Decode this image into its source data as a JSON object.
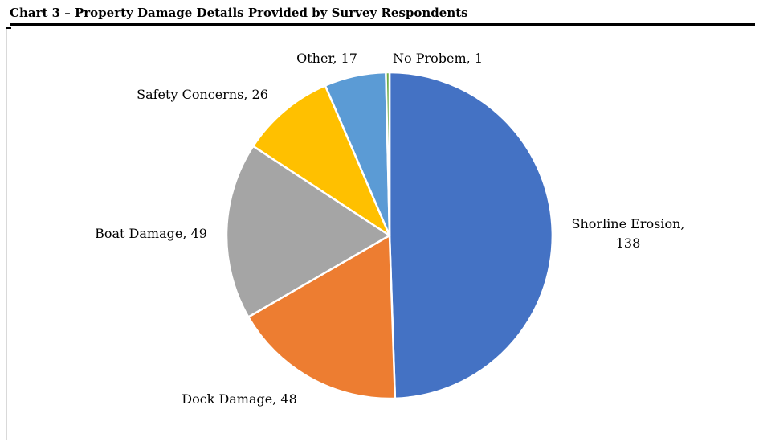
{
  "chart_data": {
    "type": "pie",
    "title": "Chart 3 – Property Damage Details Provided by Survey Respondents",
    "categories": [
      "Shorline Erosion",
      "Dock Damage",
      "Boat Damage",
      "Safety Concerns",
      "Other",
      "No Probem"
    ],
    "values": [
      138,
      48,
      49,
      26,
      17,
      1
    ],
    "labels": [
      [
        "Shorline Erosion,",
        "138"
      ],
      [
        "Dock Damage, 48"
      ],
      [
        "Boat Damage, 49"
      ],
      [
        "Safety Concerns, 26"
      ],
      [
        "Other, 17"
      ],
      [
        "No Probem, 1"
      ]
    ],
    "colors": [
      "#4472C4",
      "#ED7D31",
      "#A5A5A5",
      "#FFC000",
      "#5B9BD5",
      "#70AD47"
    ],
    "legend": "none"
  }
}
